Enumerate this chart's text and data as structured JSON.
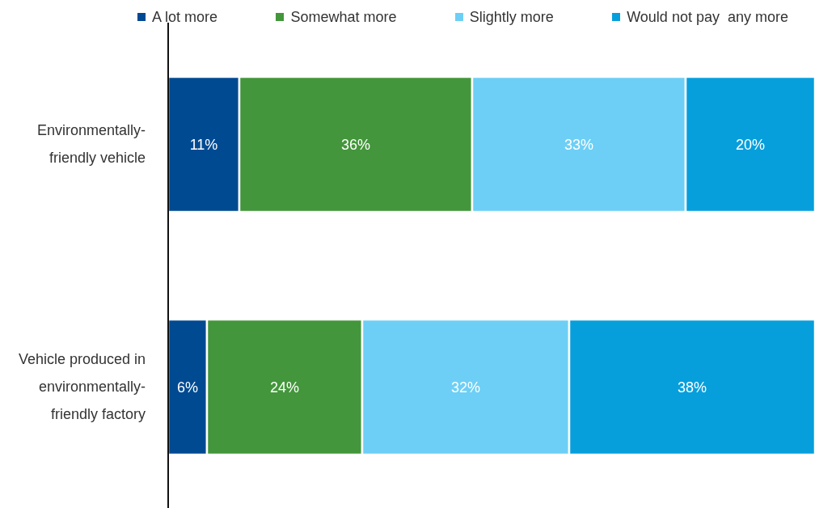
{
  "chart_data": {
    "type": "bar",
    "orientation": "horizontal",
    "stacked": true,
    "categories": [
      "Environmentally-friendly vehicle",
      "Vehicle produced in environmentally-friendly factory"
    ],
    "series": [
      {
        "name": "A lot more",
        "color": "#004a92",
        "values": [
          11,
          6
        ],
        "value_labels": [
          "11%",
          "6%"
        ]
      },
      {
        "name": "Somewhat more",
        "color": "#43963b",
        "values": [
          36,
          24
        ],
        "value_labels": [
          "36%",
          "24%"
        ]
      },
      {
        "name": "Slightly more",
        "color": "#6dcff5",
        "values": [
          33,
          32
        ],
        "value_labels": [
          "33%",
          "32%"
        ]
      },
      {
        "name": "Would not pay  any more",
        "color": "#069fdc",
        "values": [
          20,
          38
        ],
        "value_labels": [
          "20%",
          "38%"
        ]
      }
    ],
    "legend": "top",
    "tick_labels": "y"
  }
}
